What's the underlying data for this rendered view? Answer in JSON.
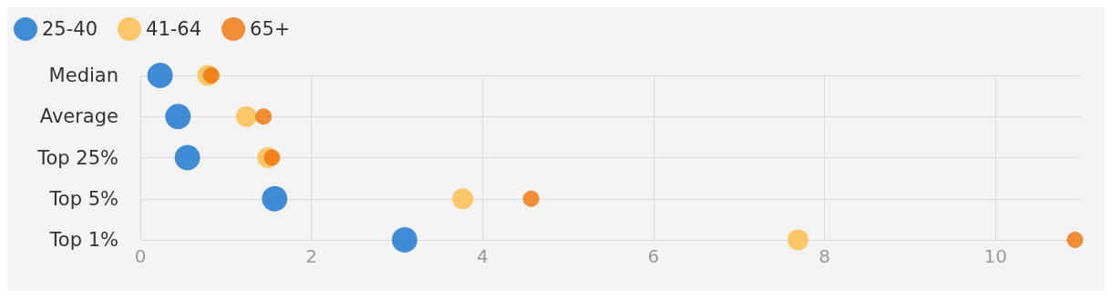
{
  "chart_data": {
    "type": "scatter",
    "orientation": "horizontal",
    "categories": [
      "Median",
      "Average",
      "Top 25%",
      "Top 5%",
      "Top 1%"
    ],
    "series": [
      {
        "name": "25-40",
        "color": "#1170cd",
        "values": [
          0.23,
          0.44,
          0.55,
          1.57,
          3.09
        ]
      },
      {
        "name": "41-64",
        "color": "#ffbc47",
        "values": [
          0.79,
          1.24,
          1.49,
          3.77,
          7.69
        ]
      },
      {
        "name": "65+",
        "color": "#f07305",
        "values": [
          0.83,
          1.44,
          1.54,
          4.57,
          10.93
        ]
      }
    ],
    "xlim": [
      0,
      11
    ],
    "xticks": [
      0,
      2,
      4,
      6,
      8,
      10
    ],
    "grid": true,
    "legend": "top left",
    "marker": "circle"
  }
}
